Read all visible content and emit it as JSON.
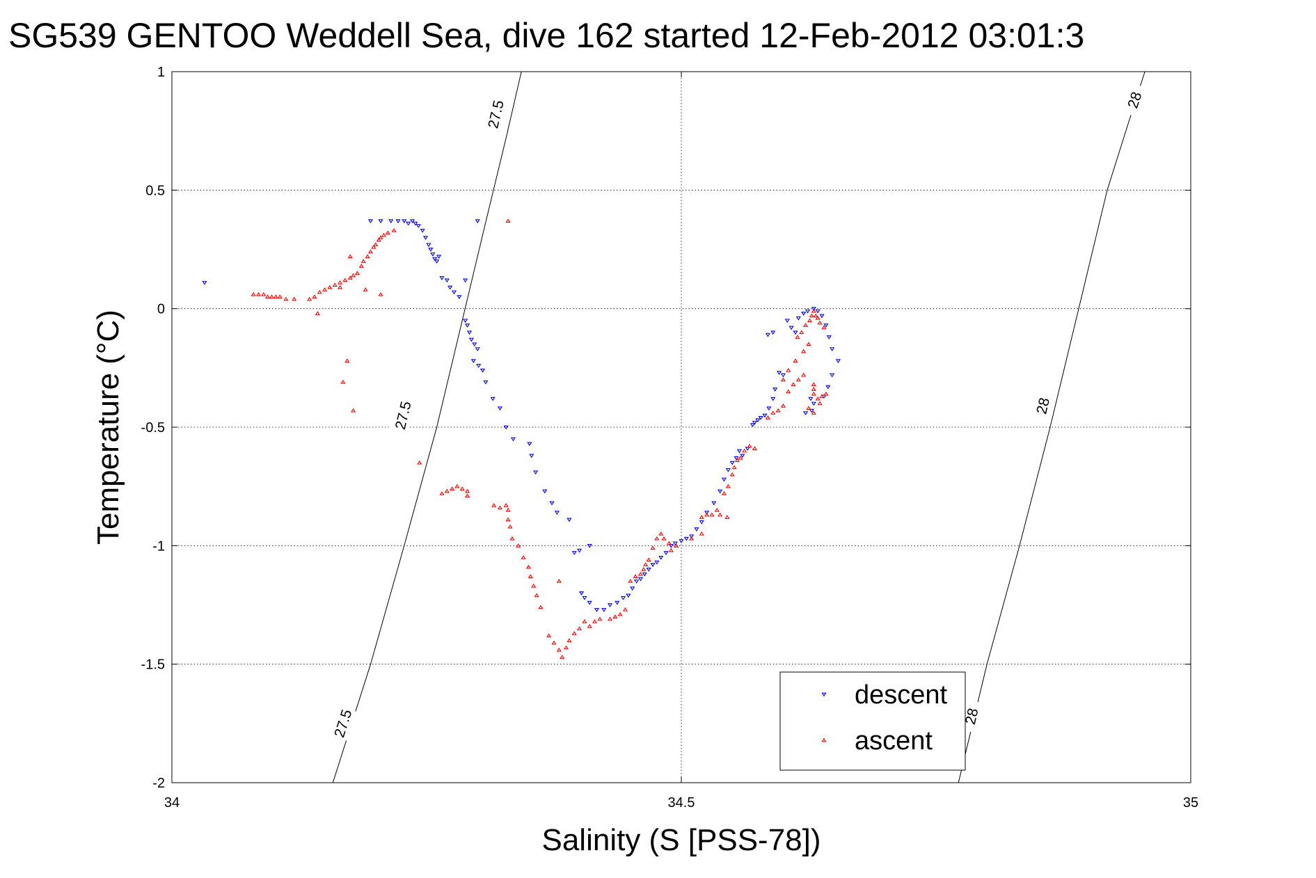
{
  "chart_data": {
    "type": "scatter",
    "title": "SG539 GENTOO Weddell Sea, dive 162 started 12-Feb-2012 03:01:3",
    "xlabel": "Salinity (S [PSS-78])",
    "ylabel": "Temperature (°C)",
    "xlim": [
      34,
      35
    ],
    "ylim": [
      -2,
      1
    ],
    "x_ticks": [
      34,
      34.5,
      35
    ],
    "x_tick_labels": [
      "34",
      "34.5",
      "35"
    ],
    "y_ticks": [
      -2,
      -1.5,
      -1,
      -0.5,
      0,
      0.5,
      1
    ],
    "y_tick_labels": [
      "-2",
      "-1.5",
      "-1",
      "-0.5",
      "0",
      "0.5",
      "1"
    ],
    "grid": true,
    "legend_position": "bottom-right",
    "colors": {
      "descent": "#0000ff",
      "ascent": "#ff0000"
    },
    "series": [
      {
        "name": "descent",
        "marker": "triangle-down",
        "points": [
          [
            34.032,
            0.11
          ],
          [
            34.195,
            0.37
          ],
          [
            34.205,
            0.37
          ],
          [
            34.215,
            0.37
          ],
          [
            34.222,
            0.37
          ],
          [
            34.228,
            0.37
          ],
          [
            34.232,
            0.36
          ],
          [
            34.236,
            0.37
          ],
          [
            34.239,
            0.36
          ],
          [
            34.242,
            0.35
          ],
          [
            34.246,
            0.33
          ],
          [
            34.249,
            0.3
          ],
          [
            34.252,
            0.27
          ],
          [
            34.254,
            0.25
          ],
          [
            34.256,
            0.23
          ],
          [
            34.258,
            0.21
          ],
          [
            34.26,
            0.2
          ],
          [
            34.262,
            0.22
          ],
          [
            34.265,
            0.13
          ],
          [
            34.27,
            0.12
          ],
          [
            34.273,
            0.09
          ],
          [
            34.277,
            0.07
          ],
          [
            34.282,
            0.05
          ],
          [
            34.288,
            0.12
          ],
          [
            34.3,
            0.37
          ],
          [
            34.288,
            -0.05
          ],
          [
            34.29,
            -0.07
          ],
          [
            34.292,
            -0.1
          ],
          [
            34.294,
            -0.13
          ],
          [
            34.297,
            -0.15
          ],
          [
            34.3,
            -0.17
          ],
          [
            34.296,
            -0.22
          ],
          [
            34.301,
            -0.24
          ],
          [
            34.305,
            -0.26
          ],
          [
            34.308,
            -0.31
          ],
          [
            34.315,
            -0.38
          ],
          [
            34.322,
            -0.42
          ],
          [
            34.328,
            -0.5
          ],
          [
            34.335,
            -0.55
          ],
          [
            34.351,
            -0.57
          ],
          [
            34.353,
            -0.62
          ],
          [
            34.357,
            -0.69
          ],
          [
            34.366,
            -0.77
          ],
          [
            34.373,
            -0.82
          ],
          [
            34.378,
            -0.86
          ],
          [
            34.39,
            -0.89
          ],
          [
            34.395,
            -1.03
          ],
          [
            34.4,
            -1.02
          ],
          [
            34.41,
            -1.0
          ],
          [
            34.402,
            -1.2
          ],
          [
            34.405,
            -1.22
          ],
          [
            34.41,
            -1.24
          ],
          [
            34.417,
            -1.27
          ],
          [
            34.424,
            -1.27
          ],
          [
            34.43,
            -1.25
          ],
          [
            34.437,
            -1.24
          ],
          [
            34.443,
            -1.22
          ],
          [
            34.448,
            -1.21
          ],
          [
            34.452,
            -1.18
          ],
          [
            34.456,
            -1.15
          ],
          [
            34.46,
            -1.14
          ],
          [
            34.464,
            -1.12
          ],
          [
            34.468,
            -1.1
          ],
          [
            34.472,
            -1.08
          ],
          [
            34.476,
            -1.07
          ],
          [
            34.48,
            -1.05
          ],
          [
            34.485,
            -1.03
          ],
          [
            34.49,
            -1.0
          ],
          [
            34.494,
            -0.99
          ],
          [
            34.5,
            -0.98
          ],
          [
            34.505,
            -0.97
          ],
          [
            34.51,
            -0.96
          ],
          [
            34.515,
            -0.93
          ],
          [
            34.52,
            -0.9
          ],
          [
            34.525,
            -0.86
          ],
          [
            34.532,
            -0.82
          ],
          [
            34.538,
            -0.77
          ],
          [
            34.542,
            -0.72
          ],
          [
            34.546,
            -0.68
          ],
          [
            34.55,
            -0.65
          ],
          [
            34.554,
            -0.63
          ],
          [
            34.557,
            -0.6
          ],
          [
            34.56,
            -0.62
          ],
          [
            34.565,
            -0.59
          ],
          [
            34.57,
            -0.49
          ],
          [
            34.572,
            -0.48
          ],
          [
            34.575,
            -0.47
          ],
          [
            34.578,
            -0.46
          ],
          [
            34.582,
            -0.45
          ],
          [
            34.586,
            -0.42
          ],
          [
            34.59,
            -0.38
          ],
          [
            34.592,
            -0.34
          ],
          [
            34.596,
            -0.27
          ],
          [
            34.6,
            -0.28
          ],
          [
            34.585,
            -0.11
          ],
          [
            34.59,
            -0.1
          ],
          [
            34.604,
            -0.05
          ],
          [
            34.608,
            -0.08
          ],
          [
            34.612,
            -0.1
          ],
          [
            34.615,
            -0.04
          ],
          [
            34.62,
            -0.02
          ],
          [
            34.624,
            -0.01
          ],
          [
            34.63,
            0.0
          ],
          [
            34.634,
            -0.01
          ],
          [
            34.638,
            -0.03
          ],
          [
            34.642,
            -0.07
          ],
          [
            34.645,
            -0.12
          ],
          [
            34.648,
            -0.17
          ],
          [
            34.654,
            -0.22
          ],
          [
            34.648,
            -0.28
          ],
          [
            34.644,
            -0.33
          ],
          [
            34.64,
            -0.37
          ],
          [
            34.63,
            -0.4
          ],
          [
            34.628,
            -0.43
          ],
          [
            34.622,
            -0.44
          ],
          [
            34.627,
            -0.38
          ]
        ]
      },
      {
        "name": "ascent",
        "marker": "triangle-up",
        "points": [
          [
            34.08,
            0.06
          ],
          [
            34.085,
            0.06
          ],
          [
            34.09,
            0.06
          ],
          [
            34.094,
            0.05
          ],
          [
            34.098,
            0.05
          ],
          [
            34.102,
            0.05
          ],
          [
            34.106,
            0.05
          ],
          [
            34.112,
            0.04
          ],
          [
            34.12,
            0.04
          ],
          [
            34.135,
            0.04
          ],
          [
            34.14,
            0.05
          ],
          [
            34.145,
            0.07
          ],
          [
            34.15,
            0.08
          ],
          [
            34.155,
            0.09
          ],
          [
            34.16,
            0.1
          ],
          [
            34.165,
            0.11
          ],
          [
            34.17,
            0.12
          ],
          [
            34.175,
            0.13
          ],
          [
            34.178,
            0.14
          ],
          [
            34.182,
            0.15
          ],
          [
            34.186,
            0.18
          ],
          [
            34.188,
            0.2
          ],
          [
            34.192,
            0.22
          ],
          [
            34.195,
            0.24
          ],
          [
            34.198,
            0.26
          ],
          [
            34.2,
            0.27
          ],
          [
            34.203,
            0.29
          ],
          [
            34.205,
            0.3
          ],
          [
            34.208,
            0.31
          ],
          [
            34.212,
            0.32
          ],
          [
            34.218,
            0.33
          ],
          [
            34.175,
            0.22
          ],
          [
            34.19,
            0.08
          ],
          [
            34.205,
            0.06
          ],
          [
            34.143,
            -0.02
          ],
          [
            34.165,
            0.09
          ],
          [
            34.172,
            -0.22
          ],
          [
            34.168,
            -0.31
          ],
          [
            34.178,
            -0.43
          ],
          [
            34.33,
            0.37
          ],
          [
            34.243,
            -0.65
          ],
          [
            34.265,
            -0.78
          ],
          [
            34.27,
            -0.77
          ],
          [
            34.275,
            -0.76
          ],
          [
            34.28,
            -0.75
          ],
          [
            34.285,
            -0.76
          ],
          [
            34.29,
            -0.77
          ],
          [
            34.29,
            -0.79
          ],
          [
            34.316,
            -0.83
          ],
          [
            34.322,
            -0.84
          ],
          [
            34.328,
            -0.83
          ],
          [
            34.33,
            -0.85
          ],
          [
            34.33,
            -0.89
          ],
          [
            34.332,
            -0.92
          ],
          [
            34.334,
            -0.97
          ],
          [
            34.34,
            -1.0
          ],
          [
            34.345,
            -1.05
          ],
          [
            34.35,
            -1.09
          ],
          [
            34.352,
            -1.13
          ],
          [
            34.355,
            -1.17
          ],
          [
            34.358,
            -1.21
          ],
          [
            34.362,
            -1.26
          ],
          [
            34.37,
            -1.38
          ],
          [
            34.375,
            -1.41
          ],
          [
            34.38,
            -1.44
          ],
          [
            34.383,
            -1.47
          ],
          [
            34.387,
            -1.43
          ],
          [
            34.39,
            -1.4
          ],
          [
            34.395,
            -1.37
          ],
          [
            34.4,
            -1.35
          ],
          [
            34.405,
            -1.32
          ],
          [
            34.41,
            -1.34
          ],
          [
            34.415,
            -1.32
          ],
          [
            34.42,
            -1.31
          ],
          [
            34.43,
            -1.31
          ],
          [
            34.435,
            -1.3
          ],
          [
            34.44,
            -1.29
          ],
          [
            34.445,
            -1.27
          ],
          [
            34.45,
            -1.15
          ],
          [
            34.455,
            -1.13
          ],
          [
            34.46,
            -1.12
          ],
          [
            34.463,
            -1.1
          ],
          [
            34.465,
            -1.08
          ],
          [
            34.468,
            -1.06
          ],
          [
            34.472,
            -1.01
          ],
          [
            34.476,
            -0.97
          ],
          [
            34.48,
            -0.95
          ],
          [
            34.483,
            -0.97
          ],
          [
            34.488,
            -0.99
          ],
          [
            34.495,
            -1.0
          ],
          [
            34.51,
            -0.97
          ],
          [
            34.52,
            -0.88
          ],
          [
            34.525,
            -0.87
          ],
          [
            34.53,
            -0.87
          ],
          [
            34.535,
            -0.85
          ],
          [
            34.538,
            -0.87
          ],
          [
            34.542,
            -0.78
          ],
          [
            34.546,
            -0.75
          ],
          [
            34.55,
            -0.7
          ],
          [
            34.552,
            -0.67
          ],
          [
            34.555,
            -0.64
          ],
          [
            34.558,
            -0.63
          ],
          [
            34.562,
            -0.6
          ],
          [
            34.567,
            -0.58
          ],
          [
            34.572,
            -0.59
          ],
          [
            34.585,
            -0.46
          ],
          [
            34.59,
            -0.44
          ],
          [
            34.595,
            -0.43
          ],
          [
            34.6,
            -0.41
          ],
          [
            34.605,
            -0.35
          ],
          [
            34.61,
            -0.32
          ],
          [
            34.615,
            -0.3
          ],
          [
            34.62,
            -0.28
          ],
          [
            34.614,
            -0.12
          ],
          [
            34.618,
            -0.1
          ],
          [
            34.622,
            -0.07
          ],
          [
            34.626,
            -0.05
          ],
          [
            34.628,
            -0.03
          ],
          [
            34.63,
            -0.01
          ],
          [
            34.632,
            -0.03
          ],
          [
            34.634,
            -0.04
          ],
          [
            34.636,
            -0.06
          ],
          [
            34.64,
            -0.08
          ],
          [
            34.625,
            -0.15
          ],
          [
            34.62,
            -0.18
          ],
          [
            34.612,
            -0.22
          ],
          [
            34.605,
            -0.26
          ],
          [
            34.6,
            -0.3
          ],
          [
            34.63,
            -0.32
          ],
          [
            34.63,
            -0.34
          ],
          [
            34.63,
            -0.36
          ],
          [
            34.634,
            -0.38
          ],
          [
            34.636,
            -0.4
          ],
          [
            34.638,
            -0.37
          ],
          [
            34.642,
            -0.36
          ],
          [
            34.625,
            -0.42
          ],
          [
            34.63,
            -0.44
          ],
          [
            34.545,
            -0.88
          ],
          [
            34.52,
            -0.95
          ],
          [
            34.49,
            -1.02
          ],
          [
            34.38,
            -1.15
          ]
        ]
      }
    ],
    "contours": [
      {
        "level": "27.5",
        "path": [
          [
            34.158,
            -2
          ],
          [
            34.195,
            -1.5
          ],
          [
            34.228,
            -1
          ],
          [
            34.26,
            -0.5
          ],
          [
            34.285,
            -0.05
          ],
          [
            34.31,
            0.4
          ],
          [
            34.328,
            0.72
          ],
          [
            34.343,
            1
          ]
        ],
        "labels": [
          [
            34.168,
            -1.75
          ],
          [
            34.227,
            -0.45
          ],
          [
            34.318,
            0.82
          ]
        ]
      },
      {
        "level": "28",
        "path": [
          [
            34.772,
            -2
          ],
          [
            34.8,
            -1.5
          ],
          [
            34.832,
            -1
          ],
          [
            34.862,
            -0.5
          ],
          [
            34.89,
            0
          ],
          [
            34.918,
            0.5
          ],
          [
            34.94,
            0.8
          ],
          [
            34.955,
            1
          ]
        ],
        "labels": [
          [
            34.785,
            -1.72
          ],
          [
            34.855,
            -0.41
          ],
          [
            34.945,
            0.88
          ]
        ]
      }
    ]
  }
}
